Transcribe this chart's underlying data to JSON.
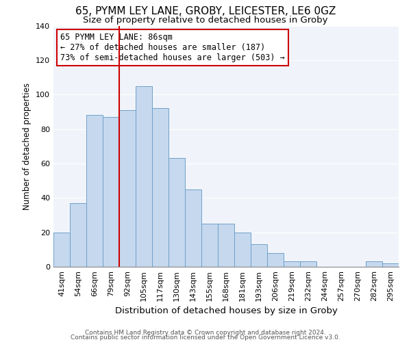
{
  "title1": "65, PYMM LEY LANE, GROBY, LEICESTER, LE6 0GZ",
  "title2": "Size of property relative to detached houses in Groby",
  "xlabel": "Distribution of detached houses by size in Groby",
  "ylabel": "Number of detached properties",
  "bar_labels": [
    "41sqm",
    "54sqm",
    "66sqm",
    "79sqm",
    "92sqm",
    "105sqm",
    "117sqm",
    "130sqm",
    "143sqm",
    "155sqm",
    "168sqm",
    "181sqm",
    "193sqm",
    "206sqm",
    "219sqm",
    "232sqm",
    "244sqm",
    "257sqm",
    "270sqm",
    "282sqm",
    "295sqm"
  ],
  "bar_values": [
    20,
    37,
    88,
    87,
    91,
    105,
    92,
    63,
    45,
    25,
    25,
    20,
    13,
    8,
    3,
    3,
    0,
    0,
    0,
    3,
    2
  ],
  "bar_color": "#c5d8ee",
  "bar_edge_color": "#6fa0c8",
  "vline_x": 3.5,
  "vline_color": "#cc0000",
  "annotation_text": "65 PYMM LEY LANE: 86sqm\n← 27% of detached houses are smaller (187)\n73% of semi-detached houses are larger (503) →",
  "annotation_box_color": "#ffffff",
  "annotation_box_edge_color": "#cc0000",
  "ylim": [
    0,
    140
  ],
  "yticks": [
    0,
    20,
    40,
    60,
    80,
    100,
    120,
    140
  ],
  "footer1": "Contains HM Land Registry data © Crown copyright and database right 2024.",
  "footer2": "Contains public sector information licensed under the Open Government Licence v3.0.",
  "title1_fontsize": 11,
  "title2_fontsize": 9.5,
  "xlabel_fontsize": 9.5,
  "ylabel_fontsize": 8.5,
  "tick_fontsize": 8,
  "annotation_fontsize": 8.5,
  "footer_fontsize": 6.5,
  "bg_color": "#f0f4fa"
}
